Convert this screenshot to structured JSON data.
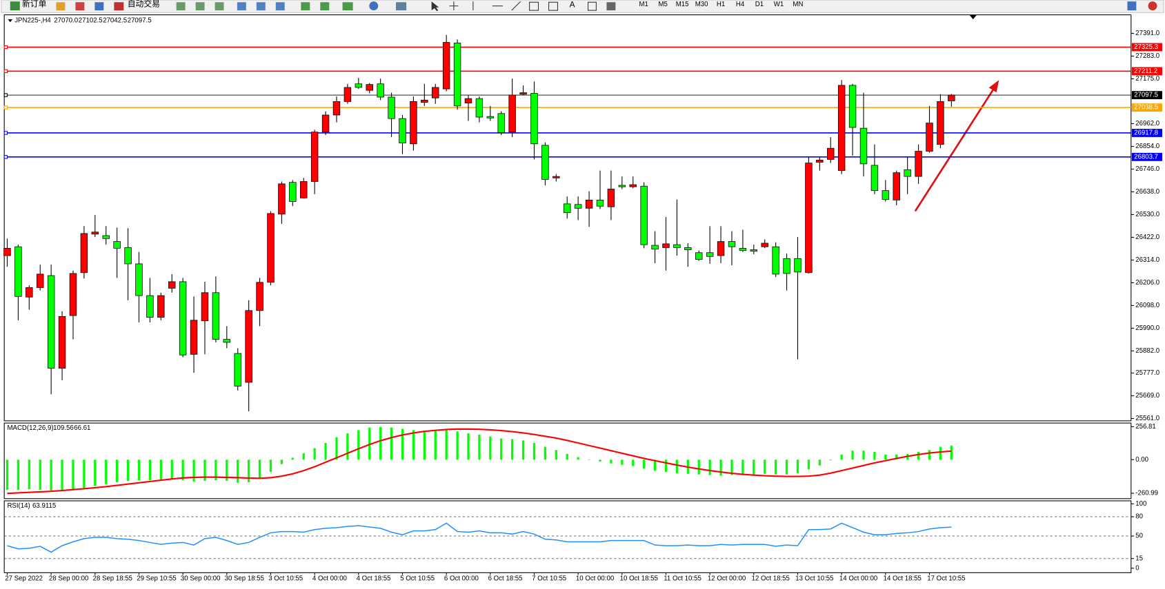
{
  "toolbar": {
    "new_order": "新订单",
    "auto_trading": "自动交易",
    "text_tool": "A",
    "timeframes": [
      "M1",
      "M5",
      "M15",
      "M30",
      "H1",
      "H4",
      "D1",
      "W1",
      "MN"
    ]
  },
  "chart_data": [
    {
      "type": "candlestick",
      "title": "JPN225-,H4",
      "ohlc_labels": [
        "27070.0",
        "27102.5",
        "27042.5",
        "27097.5"
      ],
      "up_color": "#ff0000",
      "down_color": "#00ff00",
      "categories": [
        "27 Sep 2022",
        null,
        null,
        null,
        "28 Sep 00:00",
        null,
        null,
        null,
        "28 Sep 18:55",
        null,
        null,
        null,
        "29 Sep 10:55",
        null,
        null,
        null,
        "30 Sep 00:00",
        null,
        null,
        null,
        "30 Sep 18:55",
        null,
        null,
        null,
        "3 Oct 10:55",
        null,
        null,
        null,
        "4 Oct 00:00",
        null,
        null,
        null,
        "4 Oct 18:55",
        null,
        null,
        null,
        "5 Oct 10:55",
        null,
        null,
        null,
        "6 Oct 00:00",
        null,
        null,
        null,
        "6 Oct 18:55",
        null,
        null,
        null,
        "7 Oct 10:55",
        null,
        null,
        null,
        "10 Oct 00:00",
        null,
        null,
        null,
        "10 Oct 18:55",
        null,
        null,
        null,
        "11 Oct 10:55",
        null,
        null,
        null,
        "12 Oct 00:00",
        null,
        null,
        null,
        "12 Oct 18:55",
        null,
        null,
        null,
        "13 Oct 10:55",
        null,
        null,
        null,
        "14 Oct 00:00",
        null,
        null,
        null,
        "14 Oct 18:55",
        null,
        null,
        null,
        "17 Oct 10:55",
        null,
        null
      ],
      "open": [
        26335,
        26377,
        26138,
        26183,
        26240,
        25800,
        26050,
        26254,
        26437,
        26430,
        26402,
        26373,
        26296,
        26145,
        26042,
        26180,
        26211,
        25866,
        26025,
        26159,
        25937,
        25870,
        25733,
        26074,
        26208,
        26532,
        26683,
        26609,
        26687,
        26922,
        27003,
        27067,
        27151,
        27120,
        27151,
        27088,
        26986,
        26866,
        27063,
        27084,
        27127,
        27345,
        27060,
        27081,
        26996,
        27010,
        26922,
        27102,
        27106,
        26859,
        26704,
        26581,
        26578,
        26560,
        26599,
        26567,
        26669,
        26662,
        26665,
        26384,
        26373,
        26387,
        26373,
        26349,
        26349,
        26335,
        26402,
        26370,
        26363,
        26377,
        26377,
        26321,
        26321,
        26254,
        26778,
        26792,
        26739,
        27144,
        26940,
        26764,
        26644,
        26599,
        26743,
        26711,
        26831,
        26863,
        27070
      ],
      "high": [
        26416,
        26387,
        26194,
        26292,
        26292,
        26071,
        26264,
        26475,
        26528,
        26475,
        26468,
        26465,
        26352,
        26229,
        26159,
        26247,
        26229,
        26141,
        26211,
        26236,
        26000,
        25895,
        26123,
        26229,
        26546,
        26687,
        26694,
        26704,
        26933,
        27021,
        27091,
        27151,
        27179,
        27155,
        27176,
        27109,
        27003,
        27091,
        27151,
        27151,
        27384,
        27362,
        27098,
        27091,
        27046,
        27021,
        27176,
        27144,
        27162,
        26873,
        26722,
        26616,
        26616,
        26641,
        26739,
        26739,
        26711,
        26711,
        26683,
        26451,
        26518,
        26602,
        26394,
        26359,
        26475,
        26475,
        26451,
        26458,
        26387,
        26412,
        26398,
        26345,
        26423,
        26803,
        26803,
        26898,
        27169,
        27151,
        27109,
        26863,
        26694,
        26739,
        26803,
        26863,
        27046,
        27102,
        27102.5
      ],
      "low": [
        26282,
        26028,
        26078,
        26169,
        25676,
        25743,
        25937,
        26226,
        26423,
        26387,
        26229,
        26123,
        26018,
        26018,
        26028,
        26159,
        25852,
        25778,
        25866,
        25923,
        25895,
        25694,
        25595,
        26000,
        26194,
        26486,
        26570,
        26606,
        26627,
        26908,
        26968,
        27056,
        27127,
        27106,
        27074,
        26898,
        26817,
        26834,
        27046,
        27056,
        27116,
        27028,
        26975,
        26968,
        26975,
        26908,
        26898,
        27098,
        26792,
        26669,
        26687,
        26511,
        26504,
        26472,
        26556,
        26504,
        26651,
        26655,
        26370,
        26299,
        26264,
        26335,
        26282,
        26310,
        26296,
        26299,
        26289,
        26352,
        26342,
        26370,
        26233,
        26169,
        25842,
        26250,
        26739,
        26775,
        26722,
        26810,
        26711,
        26627,
        26592,
        26574,
        26627,
        26676,
        26824,
        26845,
        27042.5
      ],
      "close": [
        26370,
        26141,
        26183,
        26247,
        25800,
        26046,
        26250,
        26440,
        26447,
        26416,
        26370,
        26296,
        26145,
        26042,
        26145,
        26211,
        25863,
        26028,
        26159,
        25937,
        25923,
        25715,
        26074,
        26208,
        26535,
        26676,
        26592,
        26687,
        26922,
        27003,
        27067,
        27134,
        27134,
        27148,
        27088,
        26986,
        26870,
        27067,
        27074,
        27134,
        27348,
        27046,
        27081,
        26993,
        26989,
        26919,
        27098,
        27109,
        26866,
        26697,
        26711,
        26539,
        26560,
        26599,
        26570,
        26651,
        26662,
        26672,
        26387,
        26366,
        26391,
        26373,
        26363,
        26317,
        26331,
        26402,
        26377,
        26359,
        26356,
        26394,
        26247,
        26250,
        26257,
        26775,
        26789,
        26845,
        27144,
        26944,
        26771,
        26644,
        26602,
        26729,
        26711,
        26831,
        26965,
        27067,
        27097.5
      ],
      "ylim": [
        25550,
        27479
      ],
      "yticks": [
        {
          "value": 27391,
          "label": "27391.0"
        },
        {
          "value": 27283,
          "label": "27283.0"
        },
        {
          "value": 27175,
          "label": "27175.0"
        },
        {
          "value": 26962,
          "label": "26962.0"
        },
        {
          "value": 26854,
          "label": "26854.0"
        },
        {
          "value": 26746,
          "label": "26746.0"
        },
        {
          "value": 26638,
          "label": "26638.0"
        },
        {
          "value": 26530,
          "label": "26530.0"
        },
        {
          "value": 26422,
          "label": "26422.0"
        },
        {
          "value": 26314,
          "label": "26314.0"
        },
        {
          "value": 26206,
          "label": "26206.0"
        },
        {
          "value": 26098,
          "label": "26098.0"
        },
        {
          "value": 25990,
          "label": "25990.0"
        },
        {
          "value": 25882,
          "label": "25882.0"
        },
        {
          "value": 25777,
          "label": "25777.0"
        },
        {
          "value": 25669,
          "label": "25669.0"
        },
        {
          "value": 25561,
          "label": "25561.0"
        }
      ],
      "levels": [
        {
          "value": 27325.3,
          "color": "#ff0000"
        },
        {
          "value": 27211.2,
          "color": "#ff0000"
        },
        {
          "value": 27097.5,
          "color": "#000000"
        },
        {
          "value": 27038.5,
          "color": "#ffa500"
        },
        {
          "value": 26917.8,
          "color": "#0000ff"
        },
        {
          "value": 26803.7,
          "color": "#0000ff"
        }
      ]
    },
    {
      "type": "macd",
      "title": "MACD(12,26,9)",
      "histogram_color": "#00ff00",
      "signal_color": "#ff0000",
      "histogram": [
        -235,
        -235,
        -230,
        -235,
        -240,
        -245,
        -240,
        -225,
        -205,
        -190,
        -175,
        -165,
        -160,
        -160,
        -155,
        -150,
        -160,
        -170,
        -165,
        -160,
        -165,
        -180,
        -175,
        -150,
        -95,
        -35,
        15,
        50,
        90,
        130,
        175,
        205,
        230,
        250,
        255,
        250,
        240,
        230,
        225,
        225,
        235,
        220,
        205,
        195,
        180,
        165,
        160,
        150,
        130,
        100,
        75,
        45,
        20,
        0,
        -15,
        -30,
        -40,
        -50,
        -70,
        -85,
        -95,
        -105,
        -110,
        -115,
        -120,
        -125,
        -120,
        -120,
        -115,
        -110,
        -115,
        -115,
        -105,
        -75,
        -45,
        -5,
        40,
        70,
        70,
        60,
        40,
        40,
        45,
        60,
        75,
        100,
        109.56
      ],
      "signal": [
        -262,
        -258,
        -254,
        -250,
        -246,
        -240,
        -233,
        -226,
        -218,
        -210,
        -200,
        -190,
        -180,
        -170,
        -160,
        -150,
        -142,
        -138,
        -136,
        -136,
        -138,
        -140,
        -143,
        -145,
        -140,
        -128,
        -110,
        -85,
        -55,
        -20,
        15,
        50,
        85,
        118,
        148,
        172,
        192,
        208,
        220,
        228,
        235,
        238,
        238,
        236,
        232,
        226,
        218,
        208,
        196,
        182,
        168,
        150,
        130,
        110,
        90,
        70,
        50,
        30,
        10,
        -8,
        -25,
        -42,
        -58,
        -72,
        -85,
        -96,
        -106,
        -114,
        -120,
        -125,
        -128,
        -130,
        -130,
        -128,
        -120,
        -105,
        -85,
        -65,
        -45,
        -25,
        -8,
        10,
        26,
        40,
        52,
        60,
        66.61
      ],
      "ylim": [
        -303,
        285
      ],
      "yticks": [
        256.81,
        {
          "value": 0,
          "label": "0.00"
        },
        -260.99
      ]
    },
    {
      "type": "line",
      "title": "RSI(14)",
      "color": "#1e90ff",
      "values": [
        35,
        30,
        31,
        34,
        25,
        35,
        41,
        46,
        48,
        48,
        46,
        45,
        43,
        40,
        37,
        39,
        40,
        36,
        46,
        48,
        43,
        37,
        40,
        48,
        55,
        57,
        57,
        56,
        60,
        62,
        63,
        65,
        66,
        64,
        62,
        56,
        52,
        58,
        58,
        60,
        70,
        57,
        56,
        58,
        55,
        55,
        53,
        57,
        53,
        45,
        44,
        41,
        41,
        41,
        41,
        43,
        43,
        43,
        43,
        36,
        35,
        35,
        36,
        35,
        35,
        37,
        36,
        37,
        37,
        37,
        34,
        36,
        35,
        60,
        60,
        61,
        70,
        63,
        56,
        52,
        52,
        54,
        55,
        57,
        61,
        63,
        63.9115
      ],
      "ylim": [
        -7,
        104.7
      ],
      "yticks": [
        100,
        80,
        50,
        15,
        0
      ],
      "levels": [
        80,
        50,
        15
      ]
    }
  ]
}
